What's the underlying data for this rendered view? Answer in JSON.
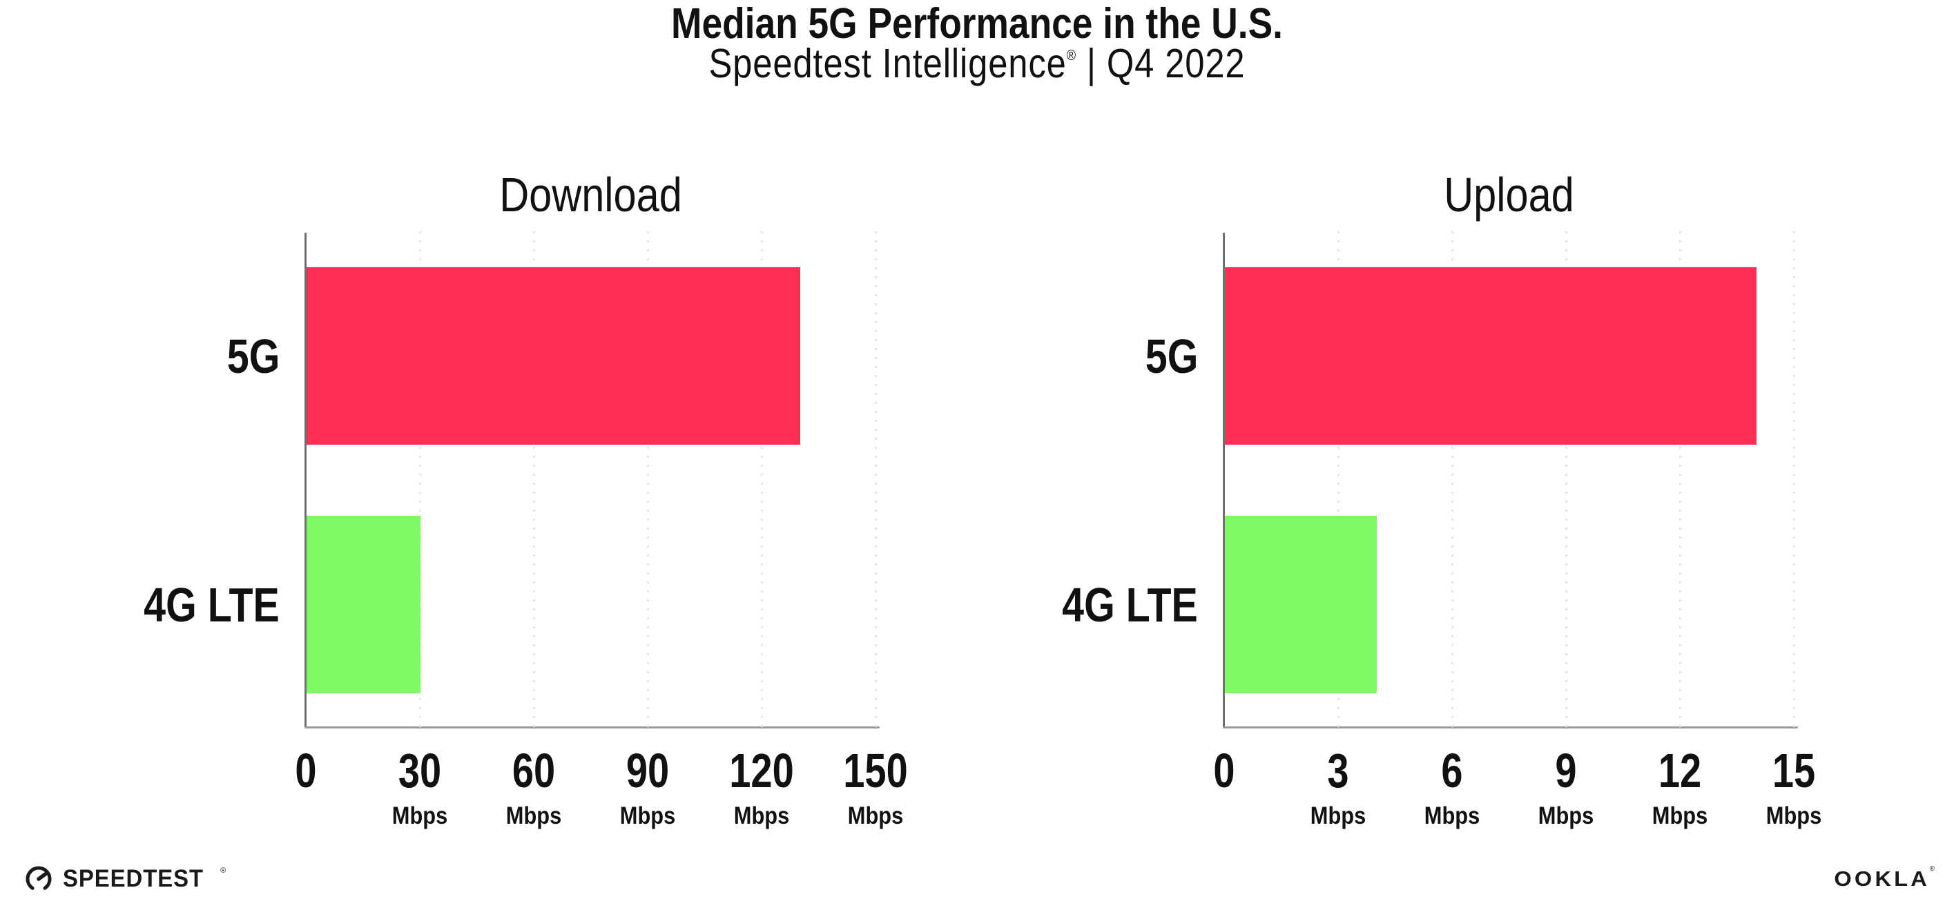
{
  "header": {
    "title": "Median 5G Performance in the U.S.",
    "subtitle_brand": "Speedtest Intelligence",
    "subtitle_mark": "®",
    "subtitle_rest": " | Q4 2022"
  },
  "colors": {
    "bar_5g": "#ff2e56",
    "bar_4g_lte": "#7ffa65",
    "grid": "#e3e4ef",
    "x_axis": "#9a9a9a",
    "y_axis": "#707070",
    "text": "#111111"
  },
  "chart_data": [
    {
      "type": "bar",
      "orientation": "horizontal",
      "title": "Download",
      "categories": [
        "5G",
        "4G LTE"
      ],
      "values": [
        130,
        30
      ],
      "unit": "Mbps",
      "xlabel": "",
      "ylabel": "",
      "xlim": [
        0,
        150
      ],
      "xticks": [
        0,
        30,
        60,
        90,
        120,
        150
      ],
      "bar_colors": [
        "#ff2e56",
        "#7ffa65"
      ],
      "grid": "vertical-dotted",
      "legend": "none"
    },
    {
      "type": "bar",
      "orientation": "horizontal",
      "title": "Upload",
      "categories": [
        "5G",
        "4G LTE"
      ],
      "values": [
        14,
        4
      ],
      "unit": "Mbps",
      "xlabel": "",
      "ylabel": "",
      "xlim": [
        0,
        15
      ],
      "xticks": [
        0,
        3,
        6,
        9,
        12,
        15
      ],
      "bar_colors": [
        "#ff2e56",
        "#7ffa65"
      ],
      "grid": "vertical-dotted",
      "legend": "none"
    }
  ],
  "footer": {
    "speedtest_label": "SPEEDTEST",
    "speedtest_mark": "®",
    "ookla_label": "OOKLA",
    "ookla_mark": "®"
  }
}
